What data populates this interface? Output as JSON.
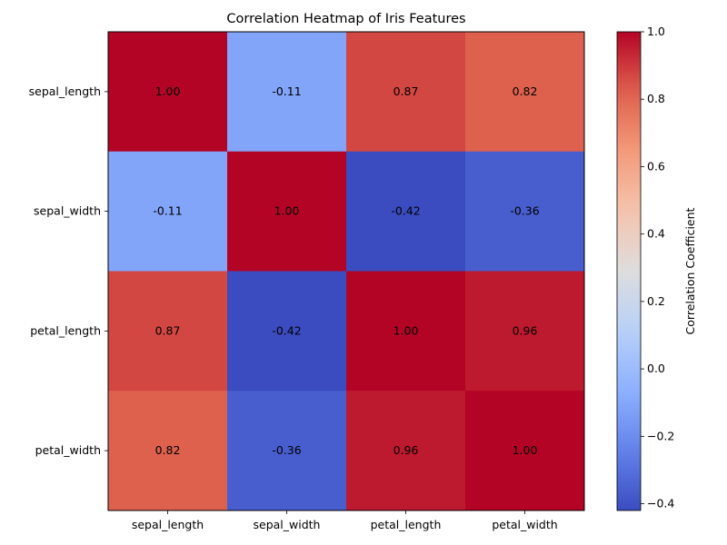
{
  "chart_data": {
    "type": "heatmap",
    "title": "Correlation Heatmap of Iris Features",
    "rows": [
      "sepal_length",
      "sepal_width",
      "petal_length",
      "petal_width"
    ],
    "columns": [
      "sepal_length",
      "sepal_width",
      "petal_length",
      "petal_width"
    ],
    "values": [
      [
        1.0,
        -0.11,
        0.87,
        0.82
      ],
      [
        -0.11,
        1.0,
        -0.42,
        -0.36
      ],
      [
        0.87,
        -0.42,
        1.0,
        0.96
      ],
      [
        0.82,
        -0.36,
        0.96,
        1.0
      ]
    ],
    "value_format": "0.00",
    "colormap": "coolwarm",
    "colorbar": {
      "label": "Correlation Coefficient",
      "range": [
        -0.42,
        1.0
      ],
      "ticks": [
        1.0,
        0.8,
        0.6,
        0.4,
        0.2,
        0.0,
        -0.2,
        -0.4
      ],
      "tick_labels": [
        "1.0",
        "0.8",
        "0.6",
        "0.4",
        "0.2",
        "0.0",
        "−0.2",
        "−0.4"
      ]
    },
    "grid": false
  }
}
